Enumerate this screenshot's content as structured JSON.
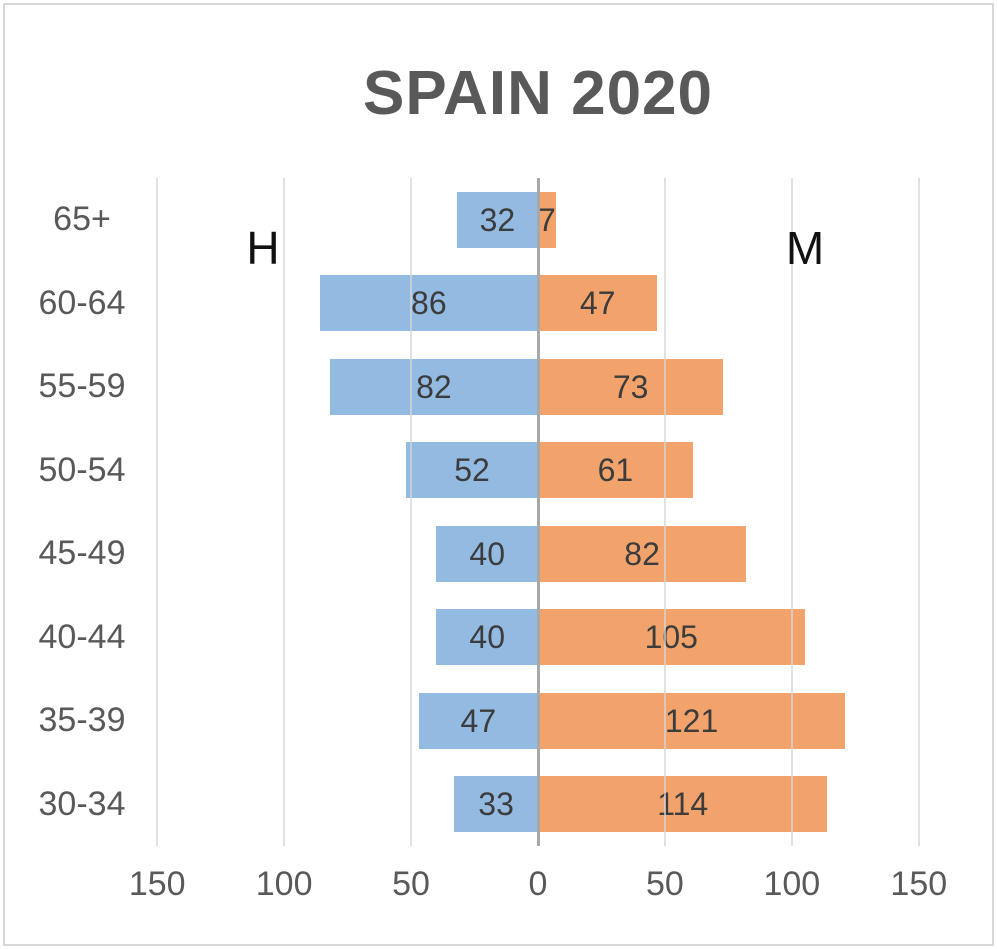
{
  "title": "SPAIN 2020",
  "series_labels": {
    "left": "H",
    "right": "M"
  },
  "colors": {
    "male_bar": "#93bae1",
    "female_bar": "#f2a36c",
    "gridline": "#d6d6d6",
    "zero_axis": "#a8a8a8",
    "title_text": "#595959",
    "axis_text": "#595959",
    "value_text": "#3c3c3c",
    "frame_border": "#d7d7d7"
  },
  "chart_data": {
    "type": "bar",
    "subtype": "population-pyramid",
    "title": "SPAIN 2020",
    "categories": [
      "65+",
      "60-64",
      "55-59",
      "50-54",
      "45-49",
      "40-44",
      "35-39",
      "30-34"
    ],
    "series": [
      {
        "name": "H",
        "side": "left",
        "color": "#93bae1",
        "values": [
          32,
          86,
          82,
          52,
          40,
          40,
          47,
          33
        ]
      },
      {
        "name": "M",
        "side": "right",
        "color": "#f2a36c",
        "values": [
          7,
          47,
          73,
          61,
          82,
          105,
          121,
          114
        ]
      }
    ],
    "x_ticks": [
      "150",
      "100",
      "50",
      "0",
      "50",
      "100",
      "150"
    ],
    "xlim": [
      -150,
      150
    ],
    "grid": true,
    "legend_position": "in-plot-text",
    "value_labels": "inside-bars"
  }
}
